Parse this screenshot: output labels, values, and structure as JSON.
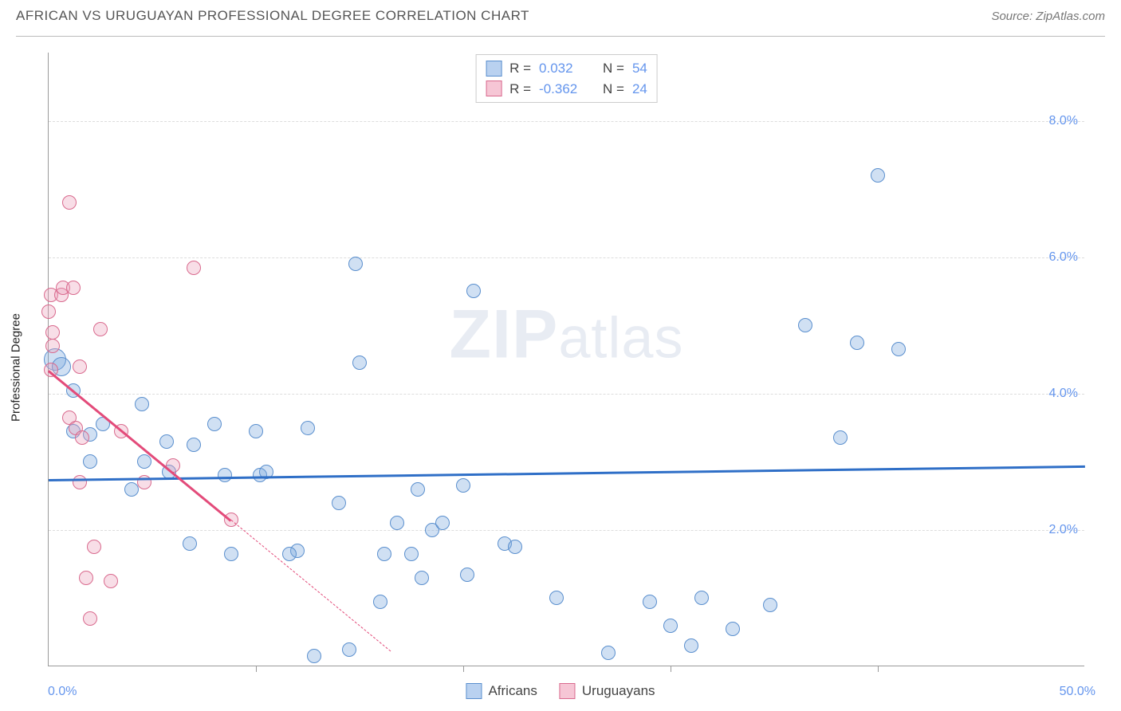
{
  "title": "AFRICAN VS URUGUAYAN PROFESSIONAL DEGREE CORRELATION CHART",
  "source": "Source: ZipAtlas.com",
  "watermark": "ZIPatlas",
  "chart": {
    "type": "scatter",
    "background_color": "#ffffff",
    "grid_color": "#dddddd",
    "axis_color": "#999999",
    "label_fontsize": 16,
    "title_fontsize": 17,
    "y_axis_title": "Professional Degree",
    "xlim": [
      0,
      50
    ],
    "ylim": [
      0,
      9
    ],
    "x_origin_label": "0.0%",
    "x_max_label": "50.0%",
    "y_ticks": [
      {
        "v": 2.0,
        "label": "2.0%"
      },
      {
        "v": 4.0,
        "label": "4.0%"
      },
      {
        "v": 6.0,
        "label": "6.0%"
      },
      {
        "v": 8.0,
        "label": "8.0%"
      }
    ],
    "x_ticks": [
      10,
      20,
      30,
      40
    ],
    "legend_top": [
      {
        "sq_fill": "#b9d1f0",
        "sq_border": "#5a8fce",
        "r": "0.032",
        "n": "54"
      },
      {
        "sq_fill": "#f6c6d5",
        "sq_border": "#d96a8e",
        "r": "-0.362",
        "n": "24"
      }
    ],
    "legend_bottom": [
      {
        "sq_fill": "#b9d1f0",
        "sq_border": "#5a8fce",
        "label": "Africans"
      },
      {
        "sq_fill": "#f6c6d5",
        "sq_border": "#d96a8e",
        "label": "Uruguayans"
      }
    ],
    "series": [
      {
        "name": "Africans",
        "fill": "rgba(120,165,220,0.35)",
        "stroke": "#5a8fce",
        "marker_radius": 9,
        "trend": {
          "x1": 0,
          "y1": 2.75,
          "x2": 50,
          "y2": 2.95,
          "color": "#2f6fc7",
          "width": 2.5
        },
        "points": [
          {
            "x": 0.3,
            "y": 4.5,
            "r": 14
          },
          {
            "x": 0.6,
            "y": 4.4,
            "r": 12
          },
          {
            "x": 1.2,
            "y": 4.05
          },
          {
            "x": 1.2,
            "y": 3.45
          },
          {
            "x": 2.0,
            "y": 3.4
          },
          {
            "x": 2.6,
            "y": 3.55
          },
          {
            "x": 2.0,
            "y": 3.0
          },
          {
            "x": 4.5,
            "y": 3.85
          },
          {
            "x": 5.7,
            "y": 3.3
          },
          {
            "x": 5.8,
            "y": 2.85
          },
          {
            "x": 4.0,
            "y": 2.6
          },
          {
            "x": 6.8,
            "y": 1.8
          },
          {
            "x": 7.0,
            "y": 3.25
          },
          {
            "x": 8.0,
            "y": 3.55
          },
          {
            "x": 8.5,
            "y": 2.8
          },
          {
            "x": 8.8,
            "y": 1.65
          },
          {
            "x": 10.0,
            "y": 3.45
          },
          {
            "x": 10.2,
            "y": 2.8
          },
          {
            "x": 10.5,
            "y": 2.85
          },
          {
            "x": 12.0,
            "y": 1.7
          },
          {
            "x": 12.5,
            "y": 3.5
          },
          {
            "x": 11.6,
            "y": 1.65
          },
          {
            "x": 12.8,
            "y": 0.15
          },
          {
            "x": 14.0,
            "y": 2.4
          },
          {
            "x": 14.5,
            "y": 0.25
          },
          {
            "x": 14.8,
            "y": 5.9
          },
          {
            "x": 15.0,
            "y": 4.45
          },
          {
            "x": 16.0,
            "y": 0.95
          },
          {
            "x": 16.2,
            "y": 1.65
          },
          {
            "x": 16.8,
            "y": 2.1
          },
          {
            "x": 17.5,
            "y": 1.65
          },
          {
            "x": 17.8,
            "y": 2.6
          },
          {
            "x": 18.0,
            "y": 1.3
          },
          {
            "x": 18.5,
            "y": 2.0
          },
          {
            "x": 19.0,
            "y": 2.1
          },
          {
            "x": 20.0,
            "y": 2.65
          },
          {
            "x": 20.2,
            "y": 1.35
          },
          {
            "x": 20.5,
            "y": 5.5
          },
          {
            "x": 22.0,
            "y": 1.8
          },
          {
            "x": 22.5,
            "y": 1.75
          },
          {
            "x": 24.5,
            "y": 1.0
          },
          {
            "x": 27.0,
            "y": 0.2
          },
          {
            "x": 29.0,
            "y": 0.95
          },
          {
            "x": 30.0,
            "y": 0.6
          },
          {
            "x": 31.0,
            "y": 0.3
          },
          {
            "x": 31.5,
            "y": 1.0
          },
          {
            "x": 36.5,
            "y": 5.0
          },
          {
            "x": 38.2,
            "y": 3.35
          },
          {
            "x": 39.0,
            "y": 4.75
          },
          {
            "x": 40.0,
            "y": 7.2
          },
          {
            "x": 41.0,
            "y": 4.65
          },
          {
            "x": 33.0,
            "y": 0.55
          },
          {
            "x": 34.8,
            "y": 0.9
          },
          {
            "x": 4.6,
            "y": 3.0
          }
        ]
      },
      {
        "name": "Uruguayans",
        "fill": "rgba(235,160,185,0.35)",
        "stroke": "#d96a8e",
        "marker_radius": 9,
        "trend": {
          "x1": 0,
          "y1": 4.35,
          "x2": 8.8,
          "y2": 2.15,
          "color": "#e34b7a",
          "width": 2.5,
          "dash_extend_to_x": 16.5
        },
        "points": [
          {
            "x": 0.0,
            "y": 5.2
          },
          {
            "x": 0.1,
            "y": 5.45
          },
          {
            "x": 0.2,
            "y": 4.9
          },
          {
            "x": 0.2,
            "y": 4.7
          },
          {
            "x": 0.1,
            "y": 4.35
          },
          {
            "x": 0.6,
            "y": 5.45
          },
          {
            "x": 0.7,
            "y": 5.55
          },
          {
            "x": 1.0,
            "y": 6.8
          },
          {
            "x": 1.0,
            "y": 3.65
          },
          {
            "x": 1.2,
            "y": 5.55
          },
          {
            "x": 1.3,
            "y": 3.5
          },
          {
            "x": 1.5,
            "y": 4.4
          },
          {
            "x": 1.5,
            "y": 2.7
          },
          {
            "x": 1.6,
            "y": 3.35
          },
          {
            "x": 1.8,
            "y": 1.3
          },
          {
            "x": 2.0,
            "y": 0.7
          },
          {
            "x": 2.2,
            "y": 1.75
          },
          {
            "x": 2.5,
            "y": 4.95
          },
          {
            "x": 3.0,
            "y": 1.25
          },
          {
            "x": 3.5,
            "y": 3.45
          },
          {
            "x": 4.6,
            "y": 2.7
          },
          {
            "x": 6.0,
            "y": 2.95
          },
          {
            "x": 7.0,
            "y": 5.85
          },
          {
            "x": 8.8,
            "y": 2.15
          }
        ]
      }
    ]
  }
}
